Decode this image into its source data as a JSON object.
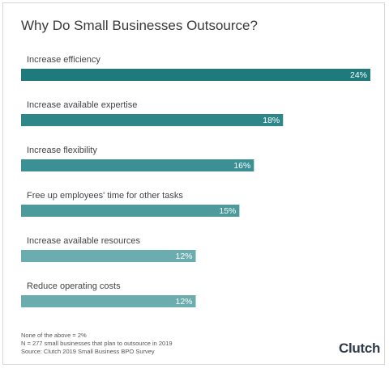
{
  "chart_data": {
    "type": "bar",
    "orientation": "horizontal",
    "title": "Why Do Small Businesses Outsource?",
    "categories": [
      "Increase efficiency",
      "Increase available expertise",
      "Increase flexibility",
      "Free up employees' time for other tasks",
      "Increase available resources",
      "Reduce operating costs"
    ],
    "values": [
      24,
      18,
      16,
      15,
      12,
      12
    ],
    "value_labels": [
      "24%",
      "18%",
      "16%",
      "15%",
      "12%",
      "12%"
    ],
    "colors": [
      "#1f7a7c",
      "#2e8689",
      "#3b9093",
      "#4c9a9c",
      "#6badae",
      "#6badae"
    ],
    "xlim": [
      0,
      24
    ],
    "grid": false,
    "legend": "none"
  },
  "footnotes": [
    "None of the above = 2%",
    "N = 277 small businesses that plan to outsource in 2019",
    "Source: Clutch 2019 Small Business BPO Survey"
  ],
  "brand": {
    "logo_text": "Clutch",
    "color": "#2f3a4a"
  }
}
